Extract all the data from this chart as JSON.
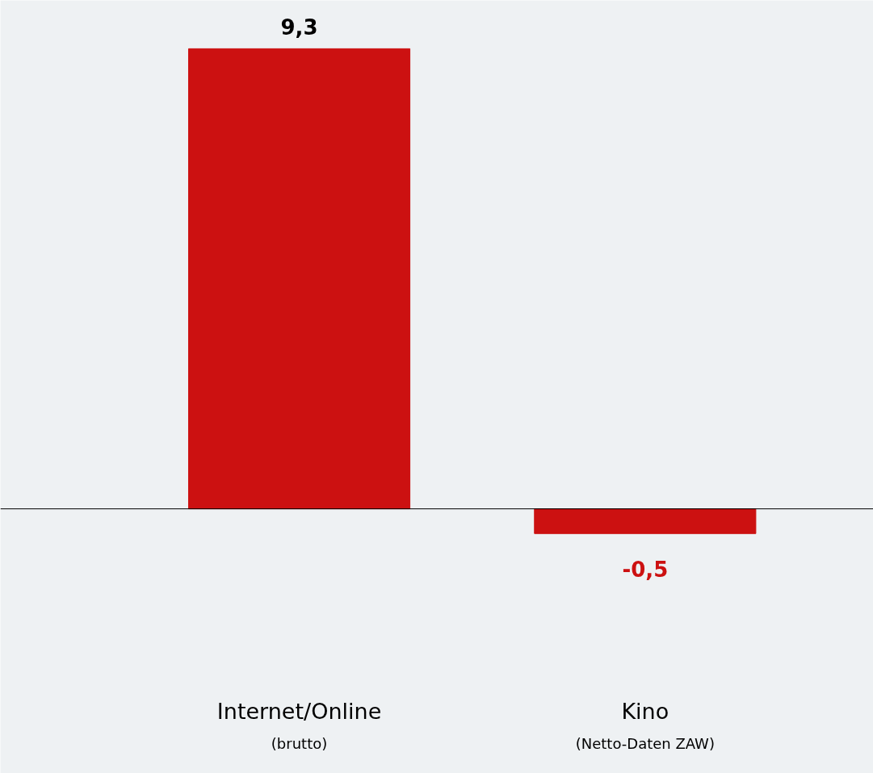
{
  "chart_data": {
    "type": "bar",
    "categories": [
      "Internet/Online\n(brutto)",
      "Kino\n(Netto-Daten ZAW)"
    ],
    "values": [
      9.3,
      -0.5
    ],
    "value_labels": [
      "9,3",
      "-0,5"
    ],
    "color": "#cc1111",
    "grid": false
  }
}
